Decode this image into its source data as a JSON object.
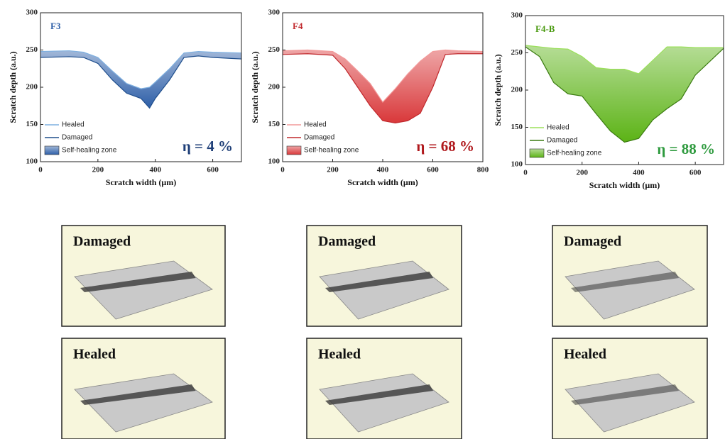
{
  "chart_data": [
    {
      "type": "area",
      "title": "F3",
      "title_color": "#2e5fa8",
      "x": [
        0,
        100,
        150,
        200,
        250,
        300,
        350,
        380,
        400,
        450,
        500,
        550,
        600,
        700
      ],
      "series": [
        {
          "name": "Healed",
          "color": "#7fb0e0",
          "values": [
            248,
            249,
            247,
            240,
            222,
            205,
            198,
            200,
            207,
            225,
            246,
            248,
            247,
            246
          ]
        },
        {
          "name": "Damaged",
          "color": "#1f4e8c",
          "values": [
            240,
            241,
            240,
            232,
            210,
            192,
            185,
            172,
            185,
            210,
            240,
            242,
            240,
            238
          ]
        }
      ],
      "fill_label": "Self-healing zone",
      "fill_color": "#2e5fa8",
      "annotation": "η = 4 %",
      "annotation_color": "#1f3f78",
      "xlabel": "Scratch width (μm)",
      "ylabel": "Scratch depth (a.u.)",
      "xlim": [
        0,
        700
      ],
      "ylim": [
        100,
        300
      ],
      "xticks": [
        0,
        200,
        400,
        600
      ],
      "yticks": [
        100,
        150,
        200,
        250,
        300
      ]
    },
    {
      "type": "area",
      "title": "F4",
      "title_color": "#c0282c",
      "x": [
        0,
        100,
        200,
        250,
        300,
        350,
        400,
        450,
        500,
        550,
        600,
        650,
        700,
        800
      ],
      "series": [
        {
          "name": "Healed",
          "color": "#f29a9a",
          "values": [
            249,
            250,
            248,
            238,
            222,
            205,
            180,
            198,
            218,
            235,
            248,
            250,
            249,
            248
          ]
        },
        {
          "name": "Damaged",
          "color": "#c0282c",
          "values": [
            244,
            245,
            243,
            225,
            200,
            175,
            155,
            152,
            155,
            165,
            200,
            244,
            245,
            245
          ]
        }
      ],
      "fill_label": "Self-healing zone",
      "fill_color": "#d9383a",
      "annotation": "η = 68 %",
      "annotation_color": "#b0181c",
      "xlabel": "Scratch width (μm)",
      "ylabel": "Scratch depth (a.u.)",
      "xlim": [
        0,
        800
      ],
      "ylim": [
        100,
        300
      ],
      "xticks": [
        0,
        200,
        400,
        600,
        800
      ],
      "yticks": [
        100,
        150,
        200,
        250,
        300
      ]
    },
    {
      "type": "area",
      "title": "F4-B",
      "title_color": "#4a9a10",
      "x": [
        0,
        50,
        100,
        150,
        200,
        250,
        300,
        350,
        400,
        450,
        500,
        550,
        600,
        700
      ],
      "series": [
        {
          "name": "Healed",
          "color": "#9be05a",
          "values": [
            260,
            258,
            256,
            255,
            245,
            230,
            228,
            228,
            222,
            240,
            258,
            258,
            257,
            257
          ]
        },
        {
          "name": "Damaged",
          "color": "#3a7a10",
          "values": [
            258,
            245,
            210,
            195,
            192,
            168,
            145,
            130,
            135,
            160,
            175,
            188,
            220,
            256
          ]
        }
      ],
      "fill_label": "Self-healing zone",
      "fill_color": "#5cb316",
      "annotation": "η = 88 %",
      "annotation_color": "#2e9a3e",
      "xlabel": "Scratch width (μm)",
      "ylabel": "Scratch depth (a.u.)",
      "xlim": [
        0,
        700
      ],
      "ylim": [
        100,
        300
      ],
      "xticks": [
        0,
        200,
        400,
        600
      ],
      "yticks": [
        100,
        150,
        200,
        250,
        300
      ]
    }
  ],
  "panels": [
    {
      "label": "Damaged"
    },
    {
      "label": "Damaged"
    },
    {
      "label": "Damaged"
    },
    {
      "label": "Healed"
    },
    {
      "label": "Healed"
    },
    {
      "label": "Healed"
    }
  ]
}
